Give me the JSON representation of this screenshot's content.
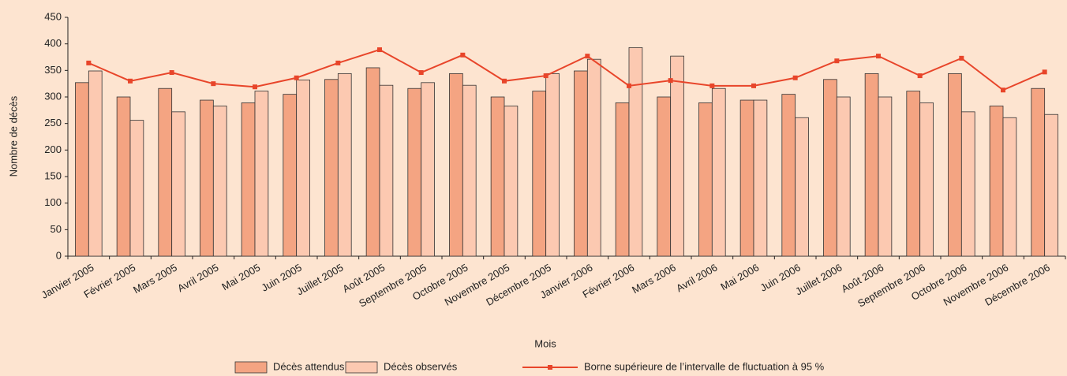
{
  "chart_data": {
    "type": "bar",
    "x_label": "Mois",
    "y_label": "Nombre de décès",
    "categories": [
      "Janvier 2005",
      "Février 2005",
      "Mars 2005",
      "Avril 2005",
      "Mai 2005",
      "Juin 2005",
      "Juillet 2005",
      "Août 2005",
      "Septembre 2005",
      "Octobre 2005",
      "Novembre 2005",
      "Décembre 2005",
      "Janvier 2006",
      "Février 2006",
      "Mars 2006",
      "Avril 2006",
      "Mai 2006",
      "Juin 2006",
      "Juillet 2006",
      "Août 2006",
      "Septembre 2006",
      "Octobre 2006",
      "Novembre 2006",
      "Décembre 2006"
    ],
    "series": [
      {
        "name": "Décès attendus",
        "color": "#f4a482",
        "values": [
          327,
          300,
          316,
          294,
          289,
          305,
          333,
          355,
          316,
          344,
          300,
          311,
          349,
          289,
          300,
          289,
          294,
          305,
          333,
          344,
          311,
          344,
          283,
          316
        ]
      },
      {
        "name": "Décès observés",
        "color": "#fcc9b1",
        "values": [
          349,
          256,
          272,
          283,
          311,
          332,
          344,
          322,
          327,
          322,
          283,
          344,
          371,
          393,
          377,
          316,
          294,
          261,
          300,
          300,
          289,
          272,
          261,
          267
        ]
      },
      {
        "name": "Borne supérieure de l’intervalle de fluctuation à 95 %",
        "color": "#e8452a",
        "type": "line",
        "values": [
          364,
          330,
          346,
          325,
          319,
          336,
          364,
          389,
          346,
          379,
          330,
          340,
          377,
          321,
          331,
          321,
          321,
          336,
          368,
          377,
          340,
          373,
          313,
          347
        ]
      }
    ],
    "ylim": [
      0,
      450
    ],
    "yticks": [
      0,
      50,
      100,
      150,
      200,
      250,
      300,
      350,
      400,
      450
    ]
  }
}
